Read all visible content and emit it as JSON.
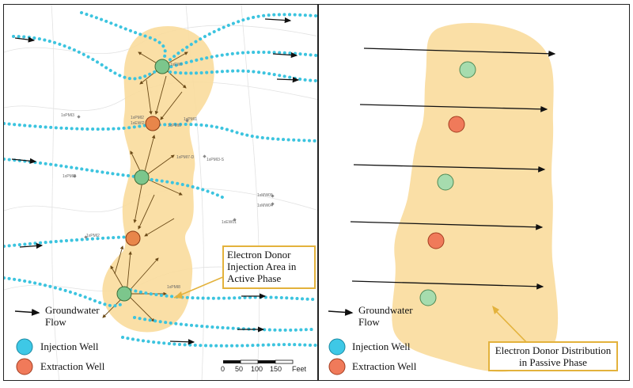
{
  "active_phase_panel": {
    "legend": {
      "groundwater_flow": [
        "Groundwater",
        "Flow"
      ],
      "injection_well": "Injection Well",
      "extraction_well": "Extraction Well"
    },
    "callout": [
      "Electron Donor",
      "Injection Area in",
      "Active Phase"
    ],
    "well_labels": [
      "1xEWI",
      "1xPMI3",
      "1xPMI2",
      "1xEWI2",
      "1xPMI0",
      "1xPMI1",
      "1xPMI7-D",
      "1xPMI3-S",
      "1xMW05",
      "1xMW04",
      "1xEW01",
      "1xPMI2",
      "1xPMI2",
      "1xPMI8"
    ],
    "scale_bar": {
      "ticks": [
        "0",
        "50",
        "100",
        "150"
      ],
      "unit": "Feet"
    }
  },
  "passive_phase_panel": {
    "legend": {
      "groundwater_flow": [
        "Groundwater",
        "Flow"
      ],
      "injection_well": "Injection Well",
      "extraction_well": "Extraction Well"
    },
    "callout": [
      "Electron Donor Distribution",
      "in Passive Phase"
    ]
  },
  "colors": {
    "injection_well_fill": "#3ec8e6",
    "extraction_well_fill": "#f07a5a",
    "donor_area": "#f9dc9c",
    "map_injection_well": "#7cc68c",
    "map_extraction_well": "#e8864a",
    "flowline_dots": "#3cc4df",
    "callout_border": "#e3b23c"
  }
}
